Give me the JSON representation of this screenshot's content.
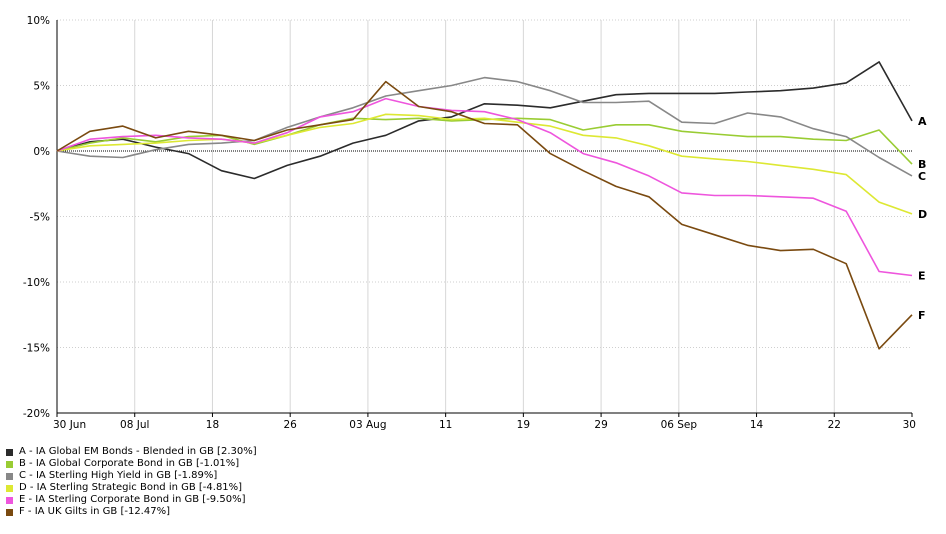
{
  "chart_data": {
    "type": "line",
    "x_labels": [
      "30 Jun",
      "08 Jul",
      "18",
      "26",
      "03 Aug",
      "11",
      "19",
      "29",
      "06 Sep",
      "14",
      "22",
      "30"
    ],
    "y_ticks": [
      10,
      5,
      0,
      -5,
      -10,
      -15,
      -20
    ],
    "y_tick_labels": [
      "10%",
      "5%",
      "0%",
      "-5%",
      "-10%",
      "-15%",
      "-20%"
    ],
    "ylim": [
      -20,
      10
    ],
    "grid": true,
    "legend_position": "bottom-left",
    "series": [
      {
        "name": "A - IA Global EM Bonds - Blended in GB [2.30%]",
        "end_label": "A",
        "color": "#2b2b2b",
        "values": [
          0,
          0.7,
          0.9,
          0.3,
          -0.2,
          -1.5,
          -2.1,
          -1.1,
          -0.4,
          0.6,
          1.2,
          2.3,
          2.6,
          3.6,
          3.5,
          3.3,
          3.8,
          4.3,
          4.4,
          4.4,
          4.4,
          4.5,
          4.6,
          4.8,
          5.2,
          6.8,
          2.3
        ]
      },
      {
        "name": "B - IA Global Corporate Bond in GB [-1.01%]",
        "end_label": "B",
        "color": "#99cc33",
        "values": [
          0,
          0.6,
          1.0,
          0.7,
          1.1,
          1.2,
          0.5,
          1.2,
          2.0,
          2.5,
          2.4,
          2.5,
          2.3,
          2.4,
          2.5,
          2.4,
          1.6,
          2.0,
          2.0,
          1.5,
          1.3,
          1.1,
          1.1,
          0.9,
          0.8,
          1.6,
          -1.0
        ]
      },
      {
        "name": "C - IA Sterling High Yield in GB [-1.89%]",
        "end_label": "C",
        "color": "#888888",
        "values": [
          0,
          -0.4,
          -0.5,
          0.1,
          0.5,
          0.6,
          0.8,
          1.8,
          2.6,
          3.3,
          4.2,
          4.6,
          5.0,
          5.6,
          5.3,
          4.6,
          3.7,
          3.7,
          3.8,
          2.2,
          2.1,
          2.9,
          2.6,
          1.7,
          1.1,
          -0.5,
          -1.9
        ]
      },
      {
        "name": "D - IA Sterling Strategic Bond in GB [-4.81%]",
        "end_label": "D",
        "color": "#dde833",
        "values": [
          0,
          0.4,
          0.5,
          0.6,
          0.8,
          0.9,
          0.6,
          1.2,
          1.8,
          2.1,
          2.8,
          2.7,
          2.4,
          2.5,
          2.2,
          1.9,
          1.2,
          1.0,
          0.4,
          -0.4,
          -0.6,
          -0.8,
          -1.1,
          -1.4,
          -1.8,
          -3.9,
          -4.8
        ]
      },
      {
        "name": "E - IA Sterling Corporate Bond in GB [-9.50%]",
        "end_label": "E",
        "color": "#ee55dd",
        "values": [
          0,
          0.9,
          1.1,
          1.2,
          1.0,
          0.9,
          0.6,
          1.4,
          2.6,
          3.0,
          4.0,
          3.4,
          3.1,
          3.0,
          2.4,
          1.4,
          -0.2,
          -0.9,
          -1.9,
          -3.2,
          -3.4,
          -3.4,
          -3.5,
          -3.6,
          -4.6,
          -9.2,
          -9.5
        ]
      },
      {
        "name": "F - IA UK Gilts in GB [-12.47%]",
        "end_label": "F",
        "color": "#7a4a10",
        "values": [
          0,
          1.5,
          1.9,
          1.0,
          1.5,
          1.2,
          0.8,
          1.6,
          2.0,
          2.4,
          5.3,
          3.4,
          3.0,
          2.1,
          2.0,
          -0.2,
          -1.5,
          -2.7,
          -3.5,
          -5.6,
          -6.4,
          -7.2,
          -7.6,
          -7.5,
          -8.6,
          -15.1,
          -12.5
        ]
      }
    ]
  }
}
